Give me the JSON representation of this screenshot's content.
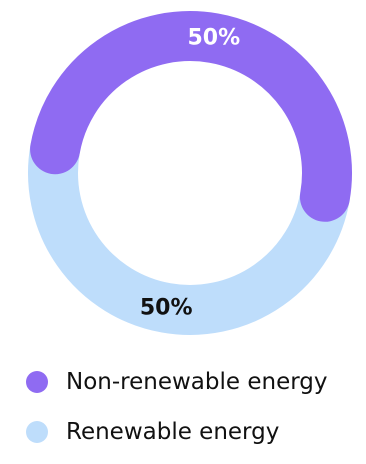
{
  "chart_data": {
    "type": "pie",
    "variant": "donut",
    "categories": [
      "Non-renewable energy",
      "Renewable energy"
    ],
    "values": [
      50,
      50
    ],
    "data_labels": [
      "50%",
      "50%"
    ],
    "colors": [
      "#8F6BF2",
      "#BEDDFB"
    ],
    "label_colors": [
      "#ffffff",
      "#111111"
    ],
    "title": "",
    "legend_position": "bottom-left"
  }
}
